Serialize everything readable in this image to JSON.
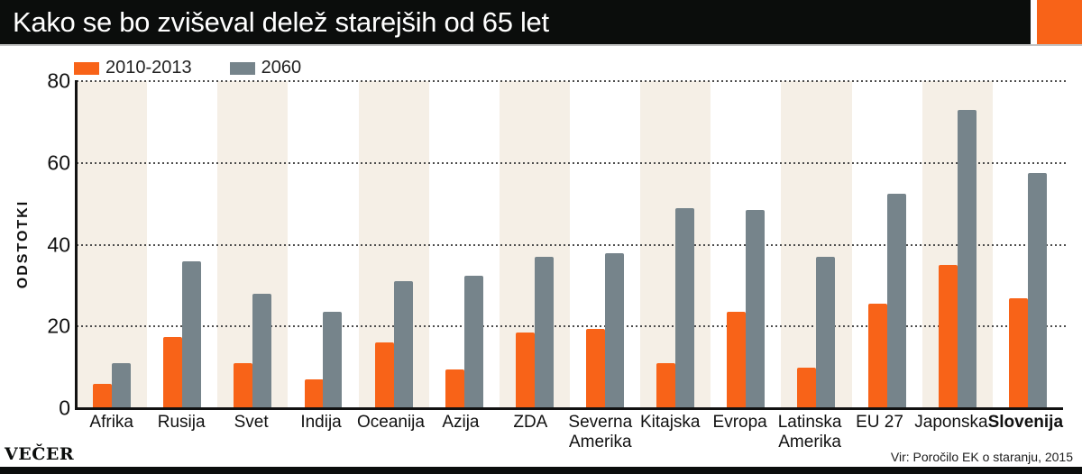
{
  "header": {
    "title": "Kako se bo zviševal delež starejših od 65 let"
  },
  "colors": {
    "accent_orange": "#f86318",
    "bar_gray": "#76848b",
    "stripe_beige": "#f5efe6",
    "header_black": "#0b0d0c"
  },
  "y_axis": {
    "label": "ODSTOTKI",
    "ticks": [
      80,
      60,
      40,
      20,
      0
    ]
  },
  "footer": {
    "brand": "VEČER",
    "source": "Vir: Poročilo EK o staranju, 2015"
  },
  "chart_data": {
    "type": "bar",
    "title": "Kako se bo zviševal delež starejših od 65 let",
    "ylabel": "ODSTOTKI",
    "ylim": [
      0,
      80
    ],
    "grid": "horizontal dotted lines at 20, 40, 60, 80",
    "legend_position": "top-left",
    "background_stripes": "alternating beige/white per category, starting beige",
    "categories": [
      "Afrika",
      "Rusija",
      "Svet",
      "Indija",
      "Oceanija",
      "Azija",
      "ZDA",
      "Severna Amerika",
      "Kitajska",
      "Evropa",
      "Latinska Amerika",
      "EU 27",
      "Japonska",
      "Slovenija"
    ],
    "emphasized_category": "Slovenija",
    "series": [
      {
        "name": "2010-2013",
        "color": "#f86318",
        "values": [
          6,
          17.5,
          11,
          7,
          16,
          9.5,
          18.5,
          19.5,
          11,
          23.5,
          10,
          25.5,
          35,
          27
        ]
      },
      {
        "name": "2060",
        "color": "#76848b",
        "values": [
          11,
          36,
          28,
          23.5,
          31,
          32.5,
          37,
          38,
          49,
          48.5,
          37,
          52.5,
          73,
          57.5
        ]
      }
    ]
  }
}
